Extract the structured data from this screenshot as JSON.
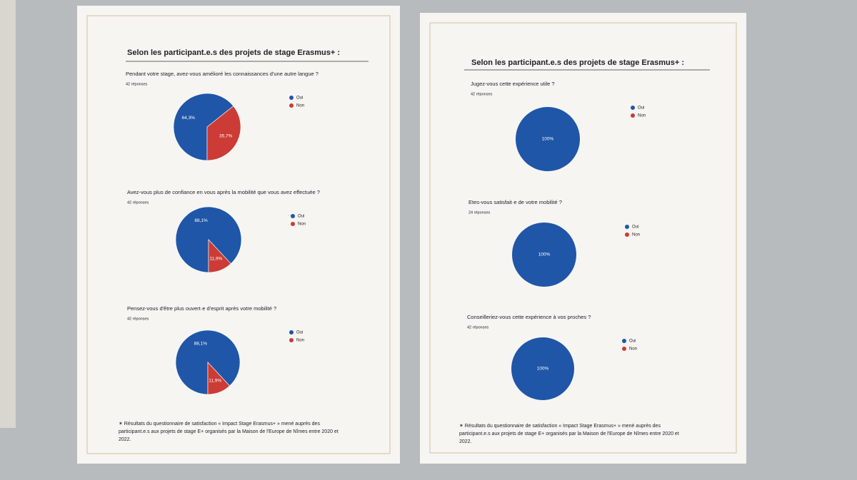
{
  "posters": [
    {
      "heading": "Selon les participant.e.s des projets de stage Erasmus+ :",
      "footnote": [
        "✶ Résultats du questionnaire de satisfaction « Impact Stage Erasmus+ » mené auprès des",
        "participant.e.s aux projets de stage E+ organisés par la Maison de l'Europe de Nîmes entre 2020 et",
        "2022."
      ]
    },
    {
      "heading": "Selon les participant.e.s des projets de stage Erasmus+ :",
      "footnote": [
        "✶ Résultats du questionnaire de satisfaction « Impact Stage Erasmus+ » mené auprès des",
        "participant.e.s aux projets de stage E+ organisés par la Maison de l'Europe de Nîmes entre 2020 et",
        "2022."
      ]
    }
  ],
  "chart_data": [
    {
      "type": "pie",
      "title": "Pendant votre stage, avez-vous amélioré les connaissances d'une autre langue ?",
      "subtitle": "42 réponses",
      "categories": [
        "Oui",
        "Non"
      ],
      "colors": [
        "#1f56a8",
        "#cc3b35"
      ],
      "values": [
        64.3,
        35.7
      ],
      "value_labels": [
        "64,3%",
        "35,7%"
      ]
    },
    {
      "type": "pie",
      "title": "Avez-vous plus de confiance en vous après la mobilité que vous avez effectuée ?",
      "subtitle": "42 réponses",
      "categories": [
        "Oui",
        "Non"
      ],
      "colors": [
        "#1f56a8",
        "#cc3b35"
      ],
      "values": [
        88.1,
        11.9
      ],
      "value_labels": [
        "88,1%",
        "11,9%"
      ]
    },
    {
      "type": "pie",
      "title": "Pensez-vous d'être plus ouvert·e d'esprit après votre mobilité ?",
      "subtitle": "42 réponses",
      "categories": [
        "Oui",
        "Non"
      ],
      "colors": [
        "#1f56a8",
        "#cc3b35"
      ],
      "values": [
        88.1,
        11.9
      ],
      "value_labels": [
        "88,1%",
        "11,9%"
      ]
    },
    {
      "type": "pie",
      "title": "Jugez-vous cette expérience utile ?",
      "subtitle": "42 réponses",
      "categories": [
        "Oui",
        "Non"
      ],
      "colors": [
        "#1f56a8",
        "#cc3b35"
      ],
      "values": [
        100,
        0
      ],
      "value_labels": [
        "100%",
        null
      ]
    },
    {
      "type": "pie",
      "title": "Etes-vous satisfait·e de votre mobilité ?",
      "subtitle": "24 réponses",
      "categories": [
        "Oui",
        "Non"
      ],
      "colors": [
        "#1f56a8",
        "#cc3b35"
      ],
      "values": [
        100,
        0
      ],
      "value_labels": [
        "100%",
        null
      ]
    },
    {
      "type": "pie",
      "title": "Conseilleriez-vous cette expérience à vos proches ?",
      "subtitle": "42 réponses",
      "categories": [
        "Oui",
        "Non"
      ],
      "colors": [
        "#1f56a8",
        "#cc3b35"
      ],
      "values": [
        100,
        0
      ],
      "value_labels": [
        "100%",
        null
      ]
    }
  ]
}
